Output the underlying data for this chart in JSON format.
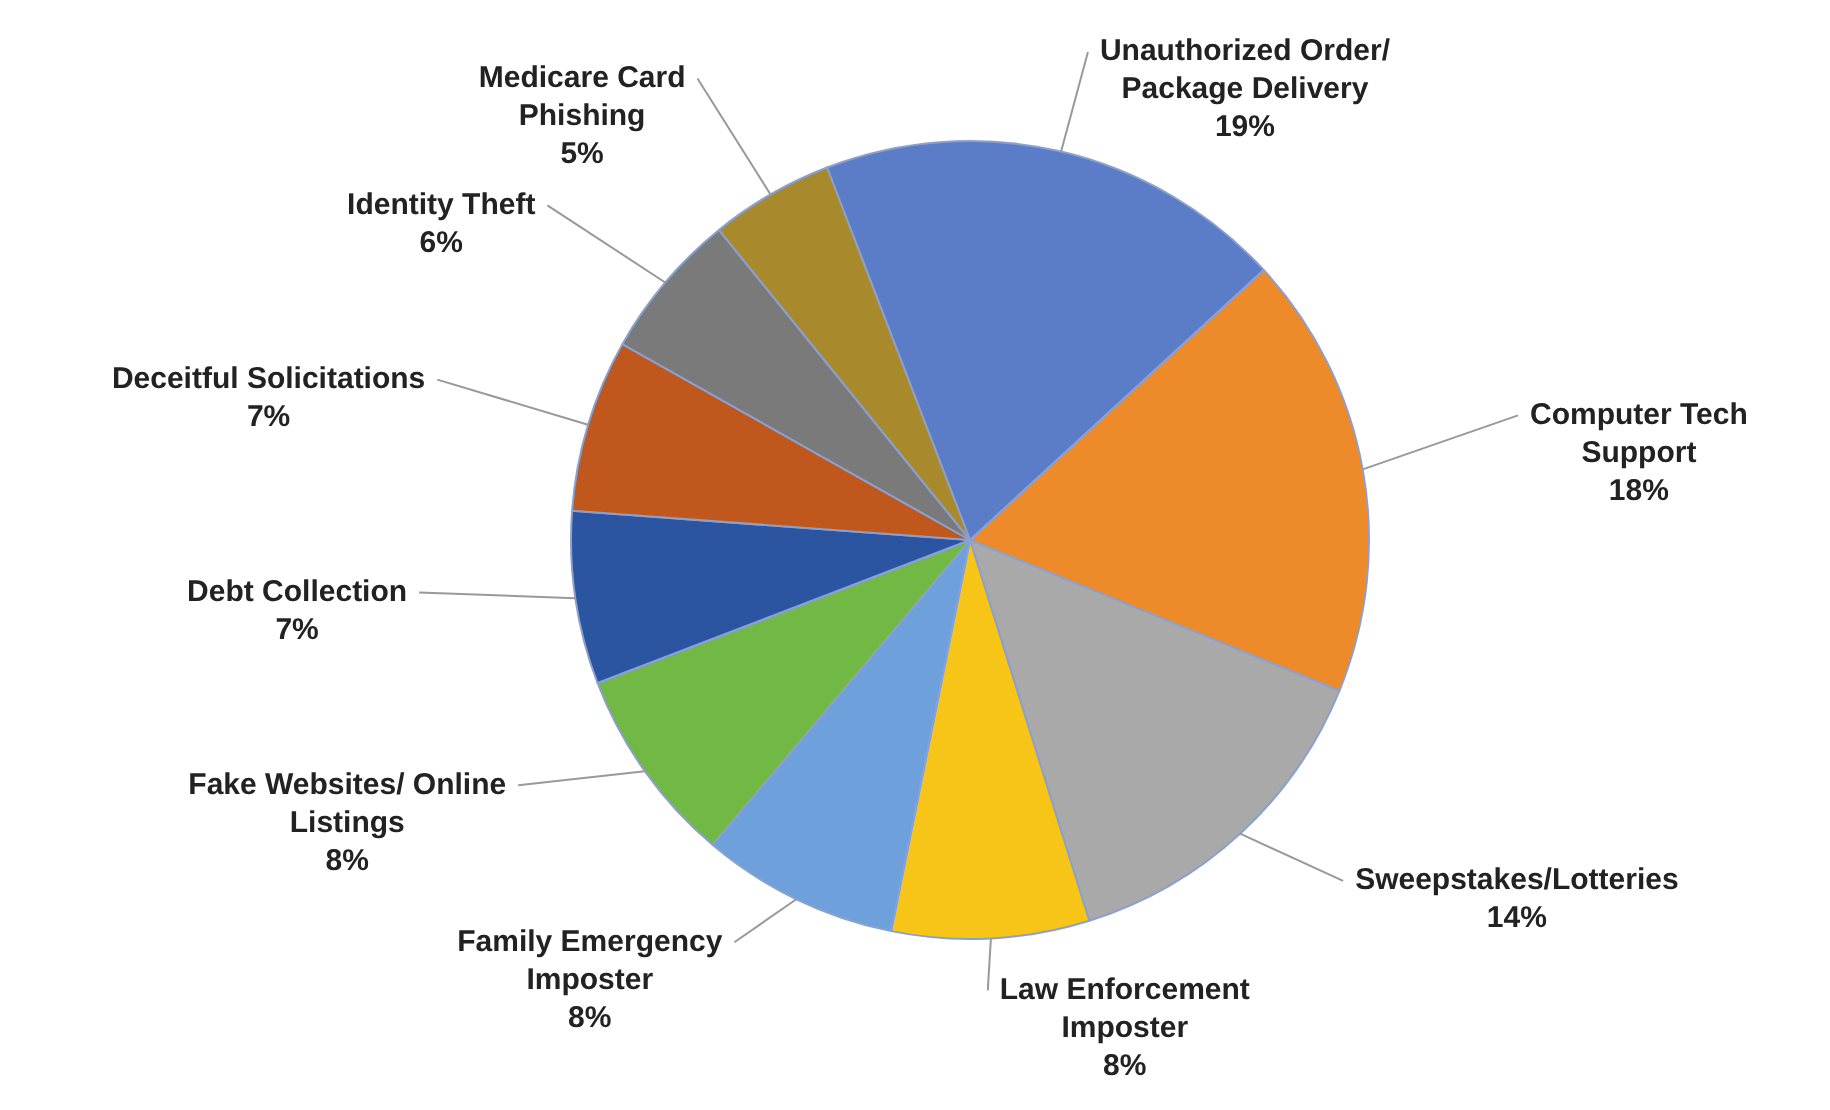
{
  "chart_data": {
    "type": "pie",
    "categories": [
      "Unauthorized Order/ Package Delivery",
      "Computer Tech Support",
      "Sweepstakes/Lotteries",
      "Law Enforcement Imposter",
      "Family Emergency Imposter",
      "Fake Websites/ Online Listings",
      "Debt Collection",
      "Deceitful Solicitations",
      "Identity Theft",
      "Medicare Card Phishing"
    ],
    "values": [
      19,
      18,
      14,
      8,
      8,
      8,
      7,
      7,
      6,
      5
    ],
    "value_labels": [
      "19%",
      "18%",
      "14%",
      "8%",
      "8%",
      "8%",
      "7%",
      "7%",
      "6%",
      "5%"
    ],
    "colors": [
      "#5b7cc6",
      "#ed8a2a",
      "#a9a9a9",
      "#f6c518",
      "#6ea0dc",
      "#72b845",
      "#2b55a0",
      "#c0581e",
      "#7a7a7a",
      "#a88a2c"
    ],
    "legend": false
  }
}
